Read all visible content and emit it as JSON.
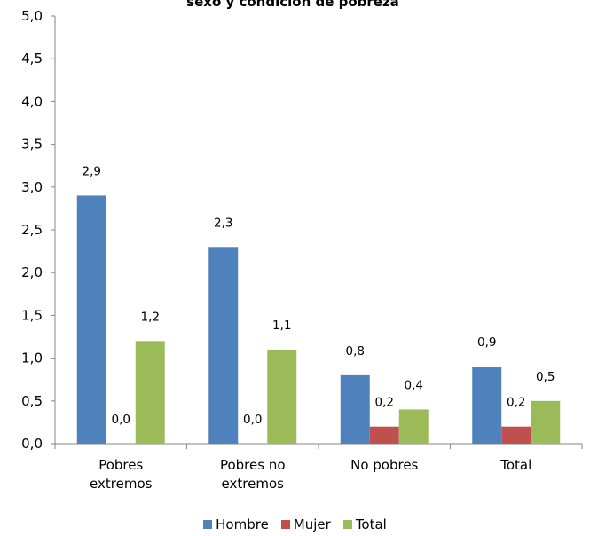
{
  "chart_data": {
    "type": "bar",
    "title": "sexo y condición de pobreza",
    "categories": [
      [
        "Pobres",
        "extremos"
      ],
      [
        "Pobres no",
        "extremos"
      ],
      [
        "No pobres"
      ],
      [
        "Total"
      ]
    ],
    "series": [
      {
        "name": "Hombre",
        "color": "#4F81BD",
        "values": [
          2.9,
          2.3,
          0.8,
          0.9
        ],
        "labels": [
          "2,9",
          "2,3",
          "0,8",
          "0,9"
        ]
      },
      {
        "name": "Mujer",
        "color": "#C0504D",
        "values": [
          0.0,
          0.0,
          0.2,
          0.2
        ],
        "labels": [
          "0,0",
          "0,0",
          "0,2",
          "0,2"
        ]
      },
      {
        "name": "Total",
        "color": "#9BBB59",
        "values": [
          1.2,
          1.1,
          0.4,
          0.5
        ],
        "labels": [
          "1,2",
          "1,1",
          "0,4",
          "0,5"
        ]
      }
    ],
    "ylim": [
      0,
      5
    ],
    "yticks": [
      0,
      0.5,
      1,
      1.5,
      2,
      2.5,
      3,
      3.5,
      4,
      4.5,
      5
    ],
    "ytick_labels": [
      "0,0",
      "0,5",
      "1,0",
      "1,5",
      "2,0",
      "2,5",
      "3,0",
      "3,5",
      "4,0",
      "4,5",
      "5,0"
    ],
    "grid": false,
    "legend": "bottom"
  }
}
